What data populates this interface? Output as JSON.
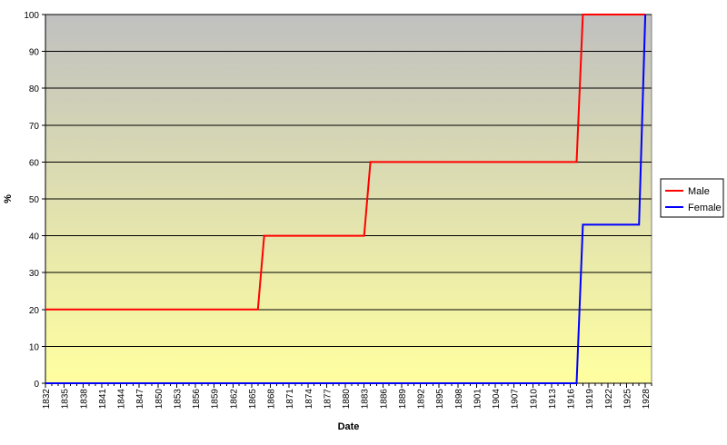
{
  "chart_data": {
    "type": "line",
    "title": "",
    "xlabel": "Date",
    "ylabel": "%",
    "ylim": [
      0,
      100
    ],
    "yticks": [
      0,
      10,
      20,
      30,
      40,
      50,
      60,
      70,
      80,
      90,
      100
    ],
    "xlim": [
      1832,
      1929
    ],
    "xticks": [
      1832,
      1835,
      1838,
      1841,
      1844,
      1847,
      1850,
      1853,
      1856,
      1859,
      1862,
      1865,
      1868,
      1871,
      1874,
      1877,
      1880,
      1883,
      1886,
      1889,
      1892,
      1895,
      1898,
      1901,
      1904,
      1907,
      1910,
      1913,
      1916,
      1919,
      1922,
      1925,
      1928
    ],
    "xtick_labels": [
      "1832",
      "1835",
      "1838",
      "1841",
      "1844",
      "1847",
      "1850",
      "1853",
      "1856",
      "1859",
      "1862",
      "1865",
      "1868",
      "1871",
      "1874",
      "1877",
      "1880",
      "1883",
      "1886",
      "1889",
      "1892",
      "1895",
      "1898",
      "1901",
      "1904",
      "1907",
      "1910",
      "1913",
      "1916",
      "1919",
      "1922",
      "1925",
      "1928"
    ],
    "grid": true,
    "legend_position": "right",
    "series": [
      {
        "name": "Male",
        "color": "#ff0000",
        "points": [
          [
            1832,
            20
          ],
          [
            1866,
            20
          ],
          [
            1867,
            40
          ],
          [
            1883,
            40
          ],
          [
            1884,
            60
          ],
          [
            1917,
            60
          ],
          [
            1918,
            100
          ],
          [
            1928,
            100
          ]
        ]
      },
      {
        "name": "Female",
        "color": "#0000ff",
        "points": [
          [
            1832,
            0
          ],
          [
            1917,
            0
          ],
          [
            1918,
            43
          ],
          [
            1927,
            43
          ],
          [
            1928,
            100
          ]
        ]
      }
    ]
  }
}
